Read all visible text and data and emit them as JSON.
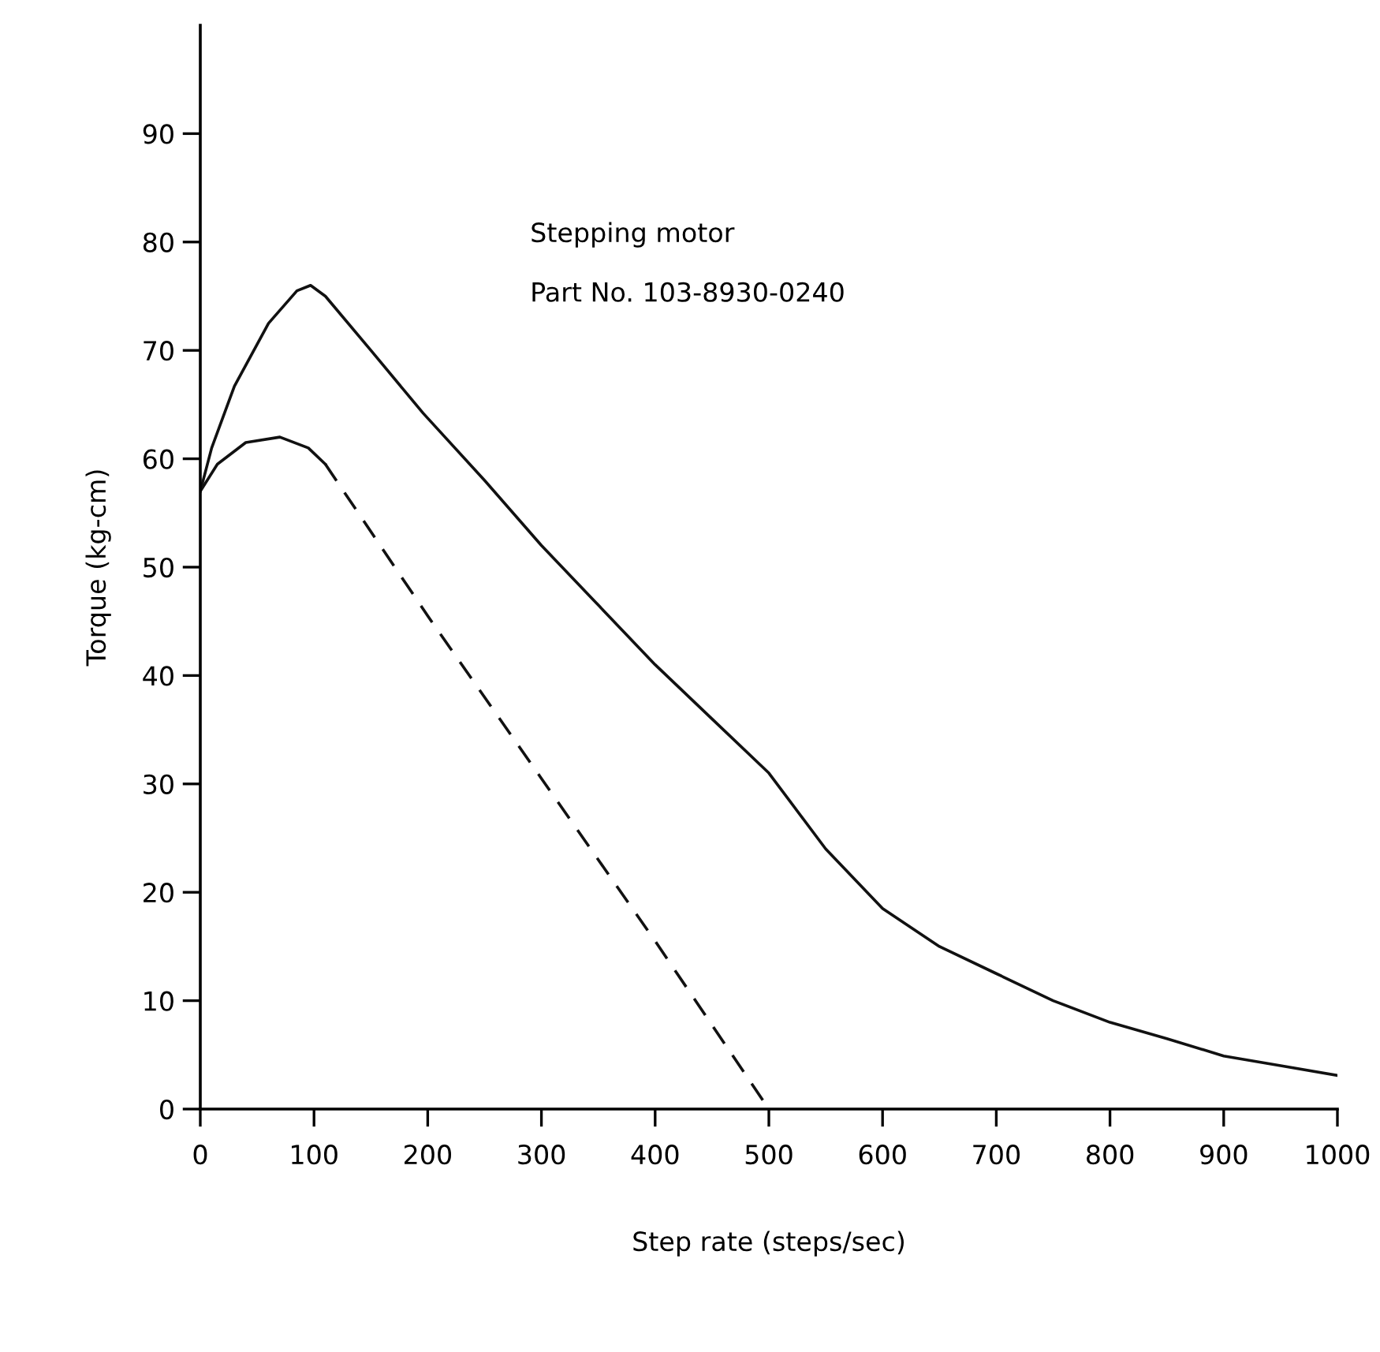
{
  "chart_data": {
    "type": "line",
    "xlabel": "Step rate (steps/sec)",
    "ylabel": "Torque (kg-cm)",
    "annotations": [
      "Stepping motor",
      "Part No. 103-8930-0240"
    ],
    "series": [
      {
        "color": "#111111",
        "line_style": "solid",
        "x": [
          0,
          10,
          30,
          60,
          85,
          97,
          110,
          150,
          196,
          250,
          300,
          350,
          400,
          450,
          500,
          550,
          600,
          650,
          700,
          750,
          800,
          850,
          900,
          950,
          1000
        ],
        "values": [
          57,
          61,
          66.7,
          72.5,
          75.5,
          76,
          75,
          70,
          64.2,
          58,
          52,
          46.5,
          41,
          36,
          31,
          24,
          18.5,
          15,
          12.5,
          10,
          8,
          6.5,
          4.9,
          4,
          3.1
        ]
      },
      {
        "color": "#111111",
        "line_style": "solid",
        "x": [
          0,
          15,
          40,
          70,
          95,
          110
        ],
        "values": [
          57,
          59.5,
          61.5,
          62,
          61,
          59.5
        ]
      },
      {
        "color": "#111111",
        "line_style": "dashed",
        "x": [
          110,
          200,
          300,
          400,
          500
        ],
        "values": [
          59.5,
          45.5,
          30.5,
          15.5,
          0
        ]
      }
    ],
    "xlim": [
      0,
      1000
    ],
    "ylim": [
      0,
      100
    ],
    "xticks": [
      0,
      100,
      200,
      300,
      400,
      500,
      600,
      700,
      800,
      900,
      1000
    ],
    "yticks": [
      0,
      10,
      20,
      30,
      40,
      50,
      60,
      70,
      80,
      90
    ],
    "grid": false,
    "marker": "none"
  }
}
